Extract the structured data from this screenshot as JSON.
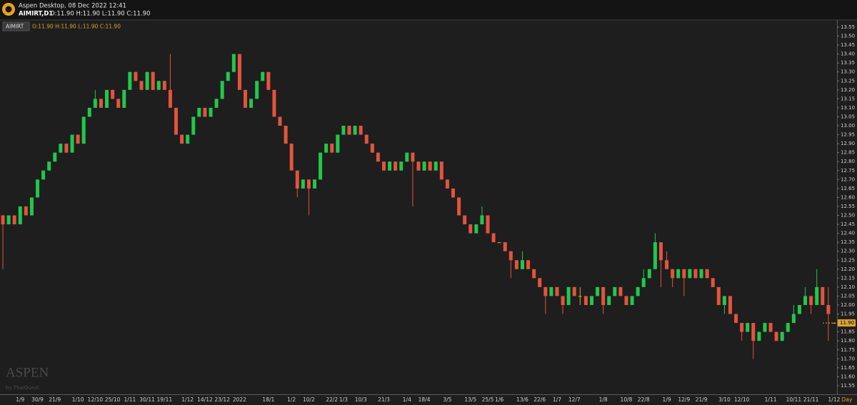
{
  "header": {
    "app_title": "Aspen Desktop, 08 Dec 2022 12:41",
    "symbol": "AIMIRT,D1",
    "ohlc": "O:11.90 H:11.90 L:11.90 C:11.90"
  },
  "watermark": {
    "brand": "ASPEN",
    "by": "by ThaiQuest"
  },
  "chart_data": {
    "type": "candlestick",
    "legend": {
      "symbol": "AIMIRT",
      "ohlc": "O:11.90 H:11.90 L:11.90 C:11.90"
    },
    "x_unit": "Day",
    "up_color": "#1fc94a",
    "down_color": "#e5533c",
    "flat_color": "#e0a52e",
    "current_price": {
      "value": 11.9,
      "label": "11.90"
    },
    "ylim": [
      11.5,
      13.6
    ],
    "yticks": [
      11.55,
      {
        "value": 11.6,
        "label": "11.60"
      },
      11.65,
      {
        "value": 11.7,
        "label": "11.70"
      },
      11.75,
      {
        "value": 11.8,
        "label": "11.80"
      },
      11.85,
      {
        "value": 11.9,
        "label": "11.90"
      },
      11.95,
      {
        "value": 12,
        "label": "12.00"
      },
      12.05,
      {
        "value": 12.1,
        "label": "12.10"
      },
      12.15,
      {
        "value": 12.2,
        "label": "12.20"
      },
      12.25,
      {
        "value": 12.3,
        "label": "12.30"
      },
      12.35,
      {
        "value": 12.4,
        "label": "12.40"
      },
      12.45,
      {
        "value": 12.5,
        "label": "12.50"
      },
      12.55,
      {
        "value": 12.6,
        "label": "12.60"
      },
      12.65,
      {
        "value": 12.7,
        "label": "12.70"
      },
      12.75,
      {
        "value": 12.8,
        "label": "12.80"
      },
      12.85,
      {
        "value": 12.9,
        "label": "12.90"
      },
      12.95,
      {
        "value": 13,
        "label": "13.00"
      },
      13.05,
      {
        "value": 13.1,
        "label": "13.10"
      },
      13.15,
      {
        "value": 13.2,
        "label": "13.20"
      },
      13.25,
      {
        "value": 13.3,
        "label": "13.30"
      },
      13.35,
      {
        "value": 13.4,
        "label": "13.40"
      },
      13.45,
      {
        "value": 13.5,
        "label": "13.50"
      },
      13.55
    ],
    "categories": [
      null,
      null,
      null,
      "1/9",
      null,
      null,
      "30/9",
      null,
      null,
      "21/9",
      null,
      null,
      null,
      "1/10",
      null,
      null,
      "12/10",
      null,
      null,
      "25/10",
      null,
      null,
      "1/11",
      null,
      null,
      "30/11",
      null,
      null,
      "19/11",
      null,
      null,
      null,
      "1/12",
      null,
      null,
      "14/12",
      null,
      null,
      "23/12",
      null,
      null,
      "2022",
      null,
      null,
      null,
      null,
      "18/1",
      null,
      null,
      null,
      "1/2",
      null,
      null,
      "10/2",
      null,
      null,
      null,
      "22/2",
      null,
      "1/3",
      null,
      null,
      "10/3",
      null,
      null,
      null,
      "21/3",
      null,
      null,
      null,
      "1/4",
      null,
      null,
      "18/4",
      null,
      null,
      null,
      "3/5",
      null,
      null,
      null,
      "13/5",
      null,
      null,
      "25/5",
      null,
      "1/6",
      null,
      null,
      null,
      "13/6",
      null,
      null,
      "22/6",
      null,
      null,
      "1/7",
      null,
      null,
      "12/7",
      null,
      null,
      null,
      null,
      "1/8",
      null,
      null,
      null,
      "10/8",
      null,
      null,
      "22/8",
      null,
      null,
      null,
      "1/9",
      null,
      null,
      "12/9",
      null,
      null,
      "21/9",
      null,
      null,
      null,
      "3/10",
      null,
      null,
      "12/10",
      null,
      null,
      null,
      null,
      "1/11",
      null,
      null,
      null,
      "10/11",
      null,
      null,
      "21/11",
      null,
      null,
      null,
      "1/12"
    ],
    "open": [
      12.5,
      12.45,
      12.5,
      12.45,
      12.55,
      12.5,
      12.6,
      12.7,
      12.75,
      12.8,
      12.85,
      12.9,
      12.85,
      12.95,
      12.9,
      13.05,
      13.1,
      13.15,
      13.1,
      13.2,
      13.15,
      13.1,
      13.2,
      13.3,
      13.25,
      13.2,
      13.3,
      13.2,
      13.25,
      13.2,
      13.1,
      12.95,
      12.9,
      12.95,
      13.05,
      13.1,
      13.05,
      13.1,
      13.15,
      13.25,
      13.3,
      13.4,
      13.2,
      13.1,
      13.15,
      13.25,
      13.3,
      13.2,
      13.05,
      13.0,
      12.9,
      12.75,
      12.65,
      12.7,
      12.65,
      12.7,
      12.85,
      12.9,
      12.85,
      12.95,
      13.0,
      12.95,
      13.0,
      12.95,
      12.9,
      12.85,
      12.8,
      12.75,
      12.8,
      12.75,
      12.8,
      12.85,
      12.8,
      12.75,
      12.8,
      12.75,
      12.8,
      12.7,
      12.65,
      12.6,
      12.5,
      12.45,
      12.4,
      12.45,
      12.5,
      12.4,
      12.35,
      12.35,
      12.3,
      12.25,
      12.2,
      12.25,
      12.2,
      12.15,
      12.1,
      12.05,
      12.1,
      12.05,
      12.0,
      12.1,
      12.05,
      12.05,
      12.0,
      12.05,
      12.1,
      12.0,
      12.05,
      12.1,
      12.05,
      12.0,
      12.05,
      12.1,
      12.15,
      12.2,
      12.35,
      12.25,
      12.2,
      12.15,
      12.2,
      12.15,
      12.2,
      12.15,
      12.2,
      12.15,
      12.1,
      12.0,
      12.05,
      11.95,
      11.9,
      11.85,
      11.9,
      11.8,
      11.85,
      11.9,
      11.85,
      11.8,
      11.85,
      11.9,
      11.95,
      12.0,
      12.05,
      12.0,
      12.1,
      12.0,
      11.9
    ],
    "high": [
      12.5,
      12.5,
      12.5,
      12.55,
      12.55,
      12.6,
      12.7,
      12.75,
      12.8,
      12.85,
      12.9,
      12.9,
      12.95,
      12.95,
      13.05,
      13.1,
      13.2,
      13.15,
      13.2,
      13.2,
      13.15,
      13.2,
      13.3,
      13.3,
      13.25,
      13.3,
      13.3,
      13.25,
      13.25,
      13.4,
      13.1,
      12.95,
      12.95,
      13.05,
      13.1,
      13.1,
      13.1,
      13.15,
      13.25,
      13.3,
      13.4,
      13.4,
      13.2,
      13.15,
      13.25,
      13.3,
      13.3,
      13.2,
      13.05,
      13.0,
      12.9,
      12.75,
      12.7,
      12.7,
      12.7,
      12.85,
      12.9,
      12.9,
      12.95,
      13.0,
      13.0,
      13.0,
      13.0,
      12.95,
      12.9,
      12.85,
      12.8,
      12.8,
      12.8,
      12.8,
      12.85,
      12.85,
      12.8,
      12.8,
      12.8,
      12.8,
      12.8,
      12.7,
      12.65,
      12.6,
      12.5,
      12.45,
      12.45,
      12.55,
      12.5,
      12.4,
      12.35,
      12.35,
      12.3,
      12.25,
      12.3,
      12.25,
      12.2,
      12.15,
      12.1,
      12.1,
      12.1,
      12.05,
      12.1,
      12.1,
      12.1,
      12.05,
      12.05,
      12.1,
      12.1,
      12.05,
      12.1,
      12.1,
      12.05,
      12.05,
      12.1,
      12.2,
      12.2,
      12.4,
      12.35,
      12.3,
      12.2,
      12.2,
      12.2,
      12.2,
      12.2,
      12.2,
      12.2,
      12.15,
      12.1,
      12.05,
      12.05,
      11.95,
      11.9,
      11.9,
      11.9,
      11.85,
      11.9,
      11.9,
      11.85,
      11.85,
      11.9,
      12.0,
      12.0,
      12.1,
      12.05,
      12.2,
      12.1,
      12.1,
      11.9
    ],
    "low": [
      12.2,
      12.45,
      12.45,
      12.45,
      12.5,
      12.5,
      12.6,
      12.7,
      12.75,
      12.8,
      12.85,
      12.85,
      12.85,
      12.9,
      12.9,
      13.05,
      13.1,
      13.1,
      13.1,
      13.15,
      13.1,
      13.1,
      13.2,
      13.25,
      13.2,
      13.2,
      13.2,
      13.2,
      13.2,
      13.1,
      12.95,
      12.9,
      12.9,
      12.95,
      13.05,
      13.05,
      13.05,
      13.1,
      13.15,
      13.25,
      13.3,
      13.2,
      13.1,
      13.1,
      13.15,
      13.25,
      13.2,
      13.05,
      13.0,
      12.9,
      12.75,
      12.6,
      12.65,
      12.5,
      12.65,
      12.7,
      12.85,
      12.85,
      12.85,
      12.95,
      12.95,
      12.95,
      12.95,
      12.9,
      12.85,
      12.8,
      12.75,
      12.75,
      12.75,
      12.75,
      12.8,
      12.55,
      12.75,
      12.75,
      12.75,
      12.75,
      12.7,
      12.65,
      12.6,
      12.5,
      12.45,
      12.4,
      12.4,
      12.45,
      12.4,
      12.35,
      12.35,
      12.3,
      12.15,
      12.2,
      12.2,
      12.2,
      12.15,
      12.1,
      11.95,
      12.05,
      12.05,
      11.95,
      12.0,
      12.05,
      12.0,
      12.0,
      12.0,
      12.05,
      11.95,
      12.0,
      12.05,
      12.05,
      12.0,
      12.0,
      12.05,
      12.1,
      12.15,
      12.2,
      12.1,
      12.2,
      12.1,
      12.15,
      12.05,
      12.15,
      12.15,
      12.15,
      12.15,
      12.1,
      12.0,
      11.95,
      11.95,
      11.9,
      11.8,
      11.85,
      11.7,
      11.8,
      11.85,
      11.85,
      11.8,
      11.8,
      11.85,
      11.9,
      11.95,
      12.0,
      11.95,
      12.0,
      12.0,
      11.8,
      11.9
    ],
    "close": [
      12.45,
      12.5,
      12.45,
      12.55,
      12.5,
      12.6,
      12.7,
      12.75,
      12.8,
      12.85,
      12.9,
      12.85,
      12.95,
      12.9,
      13.05,
      13.1,
      13.15,
      13.1,
      13.2,
      13.15,
      13.1,
      13.2,
      13.3,
      13.25,
      13.2,
      13.3,
      13.2,
      13.25,
      13.2,
      13.1,
      12.95,
      12.9,
      12.95,
      13.05,
      13.1,
      13.05,
      13.1,
      13.15,
      13.25,
      13.3,
      13.4,
      13.2,
      13.1,
      13.15,
      13.25,
      13.3,
      13.2,
      13.05,
      13.0,
      12.9,
      12.75,
      12.65,
      12.7,
      12.65,
      12.7,
      12.85,
      12.9,
      12.85,
      12.95,
      13.0,
      12.95,
      13.0,
      12.95,
      12.9,
      12.85,
      12.8,
      12.75,
      12.8,
      12.75,
      12.8,
      12.85,
      12.8,
      12.75,
      12.8,
      12.75,
      12.8,
      12.7,
      12.65,
      12.6,
      12.5,
      12.45,
      12.4,
      12.45,
      12.5,
      12.4,
      12.35,
      12.35,
      12.3,
      12.25,
      12.2,
      12.25,
      12.2,
      12.15,
      12.1,
      12.05,
      12.1,
      12.05,
      12.0,
      12.1,
      12.05,
      12.05,
      12.0,
      12.05,
      12.1,
      12.0,
      12.05,
      12.1,
      12.05,
      12.0,
      12.05,
      12.1,
      12.15,
      12.2,
      12.35,
      12.25,
      12.2,
      12.15,
      12.2,
      12.15,
      12.2,
      12.15,
      12.2,
      12.15,
      12.1,
      12.0,
      12.05,
      11.95,
      11.9,
      11.85,
      11.9,
      11.8,
      11.85,
      11.9,
      11.85,
      11.8,
      11.85,
      11.9,
      11.95,
      12.0,
      12.05,
      12.0,
      12.1,
      12.0,
      11.95,
      11.9
    ]
  }
}
